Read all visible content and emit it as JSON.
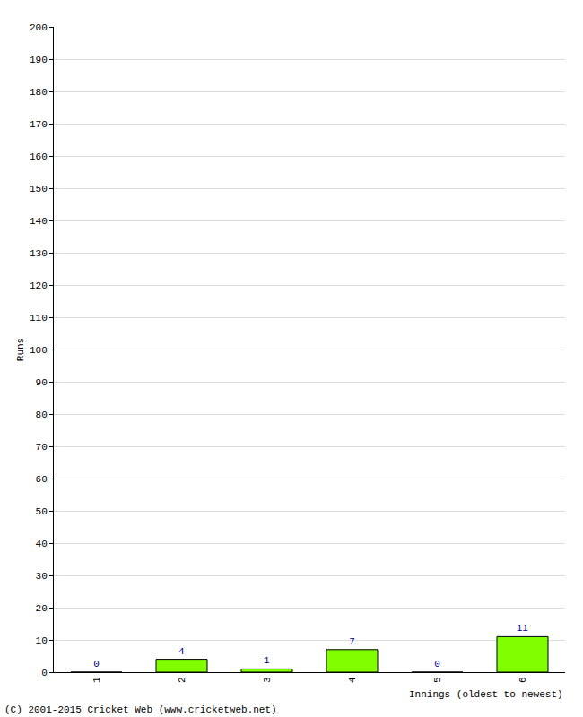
{
  "chart_data": {
    "type": "bar",
    "x_label": "Innings (oldest to newest)",
    "y_label": "Runs",
    "categories": [
      "1",
      "2",
      "3",
      "4",
      "5",
      "6"
    ],
    "values": [
      0,
      4,
      1,
      7,
      0,
      11
    ],
    "color": "#80ff00",
    "ylim": [
      0,
      200
    ],
    "yticks": [
      0,
      10,
      20,
      30,
      40,
      50,
      60,
      70,
      80,
      90,
      100,
      110,
      120,
      130,
      140,
      150,
      160,
      170,
      180,
      190,
      200
    ],
    "grid": true,
    "data_labels": true,
    "annotations": [
      "(C) 2001-2015 Cricket Web (www.cricketweb.net)"
    ]
  }
}
